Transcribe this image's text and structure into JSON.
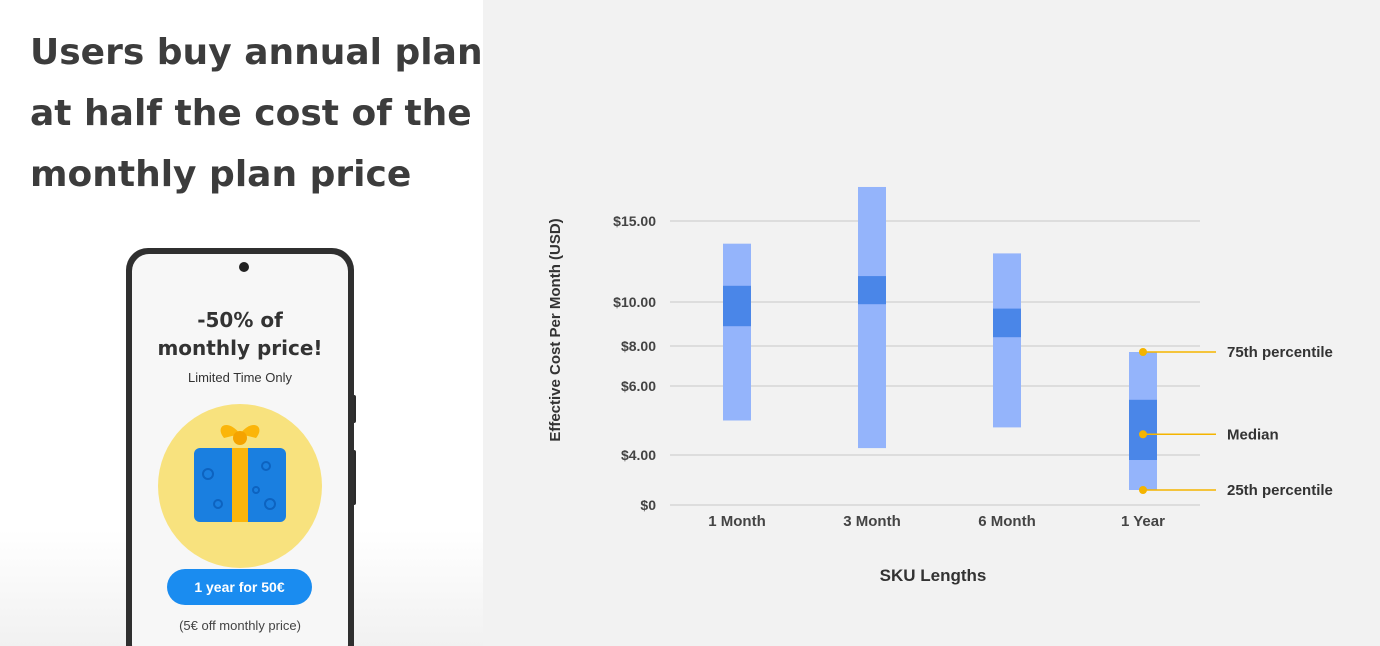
{
  "slide": {
    "headline": [
      "Users buy annual plan",
      "at half the cost of the",
      "monthly plan price"
    ]
  },
  "phone": {
    "promo_title": [
      "-50% of",
      "monthly price!"
    ],
    "promo_subtitle": "Limited Time Only",
    "gift_icon": "gift-icon",
    "cta_label": "1 year for 50€",
    "cta_note": "(5€ off monthly price)"
  },
  "colors": {
    "headline_text": "#3c3c3c",
    "range_bar": "#94b4fb",
    "iqr_bar": "#4a86e8",
    "annotation": "#f4b400",
    "cta_button": "#1a8cf0",
    "gift_bg": "#f8e27e",
    "gift_box": "#1a7fe0",
    "gift_ribbon": "#fbb50a"
  },
  "chart_data": {
    "type": "range-bar",
    "xlabel": "SKU Lengths",
    "ylabel": "Effective Cost Per Month (USD)",
    "y_ticks": [
      {
        "value": 0,
        "label": "$0"
      },
      {
        "value": 4,
        "label": "$4.00"
      },
      {
        "value": 6,
        "label": "$6.00"
      },
      {
        "value": 8,
        "label": "$8.00"
      },
      {
        "value": 10,
        "label": "$10.00"
      },
      {
        "value": 15,
        "label": "$15.00"
      }
    ],
    "grid": true,
    "categories": [
      "1 Month",
      "3 Month",
      "6 Month",
      "1 Year"
    ],
    "series": [
      {
        "category": "1 Month",
        "p25": 5.0,
        "median_low": 8.9,
        "median_high": 11.0,
        "p75": 13.6
      },
      {
        "category": "3 Month",
        "p25": 4.2,
        "median_low": 9.9,
        "median_high": 11.6,
        "p75": 17.1
      },
      {
        "category": "6 Month",
        "p25": 4.8,
        "median_low": 8.4,
        "median_high": 9.7,
        "p75": 13.0
      },
      {
        "category": "1 Year",
        "p25": 1.2,
        "median_low": 3.6,
        "median_high": 5.6,
        "p75": 7.7
      }
    ],
    "annotations": [
      "75th percentile",
      "Median",
      "25th percentile"
    ]
  }
}
